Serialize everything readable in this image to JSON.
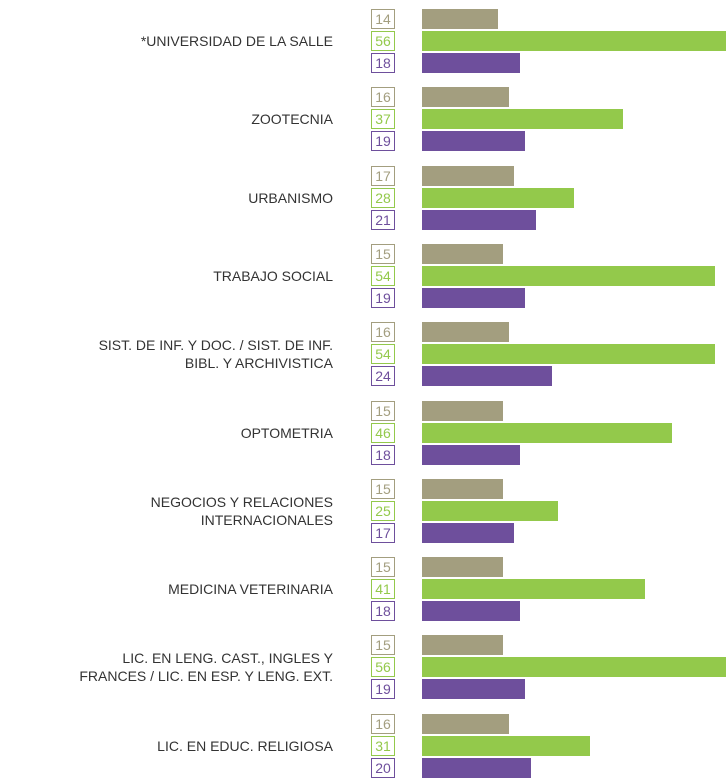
{
  "chart_data": {
    "type": "bar",
    "orientation": "horizontal",
    "categories": [
      "*UNIVERSIDAD DE LA SALLE",
      "ZOOTECNIA",
      "URBANISMO",
      "TRABAJO SOCIAL",
      "SIST. DE INF. Y DOC. / SIST. DE INF.\nBIBL. Y ARCHIVISTICA",
      "OPTOMETRIA",
      "NEGOCIOS Y RELACIONES\nINTERNACIONALES",
      "MEDICINA VETERINARIA",
      "LIC. EN LENG. CAST., INGLES Y\nFRANCES / LIC. EN ESP. Y LENG. EXT.",
      "LIC. EN EDUC. RELIGIOSA"
    ],
    "series": [
      {
        "color": "#a39e7f",
        "values": [
          14,
          16,
          17,
          15,
          16,
          15,
          15,
          15,
          15,
          16
        ]
      },
      {
        "color": "#93c94b",
        "values": [
          56,
          37,
          28,
          54,
          54,
          46,
          25,
          41,
          56,
          31
        ]
      },
      {
        "color": "#6e4f9c",
        "values": [
          18,
          19,
          21,
          19,
          24,
          18,
          17,
          18,
          19,
          20
        ]
      }
    ]
  }
}
